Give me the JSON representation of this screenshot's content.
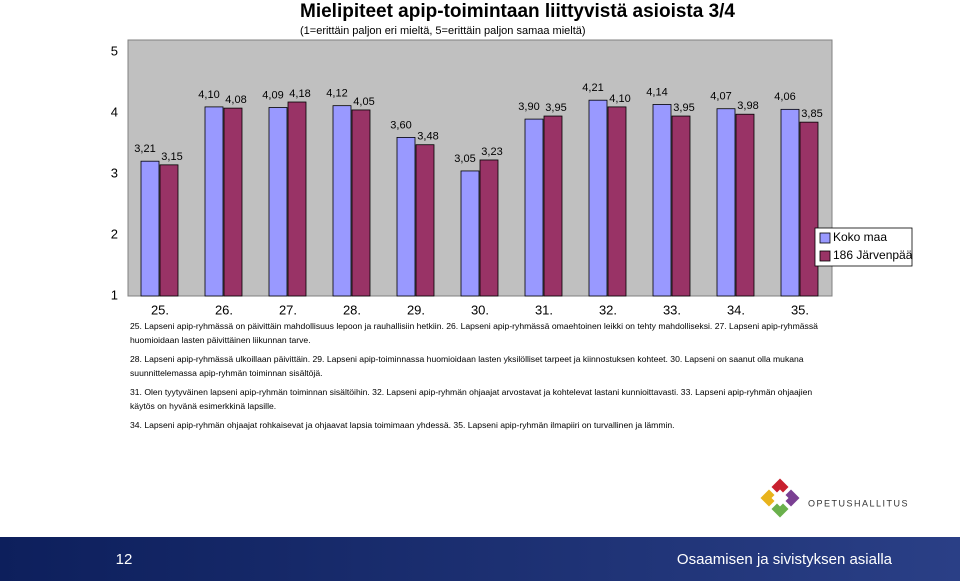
{
  "chart_data": {
    "type": "bar",
    "title": "Mielipiteet apip-toimintaan liittyvistä asioista 3/4",
    "subtitle": "(1=erittäin paljon eri mieltä, 5=erittäin paljon samaa mieltä)",
    "categories": [
      "25.",
      "26.",
      "27.",
      "28.",
      "29.",
      "30.",
      "31.",
      "32.",
      "33.",
      "34.",
      "35."
    ],
    "series": [
      {
        "name": "Koko maa",
        "color": "#9999ff",
        "values": [
          3.21,
          4.1,
          4.09,
          4.12,
          3.6,
          3.05,
          3.9,
          4.21,
          4.14,
          4.07,
          4.06
        ],
        "value_labels": [
          "3,21",
          "4,10",
          "4,09",
          "4,12",
          "3,60",
          "3,05",
          "3,90",
          "4,21",
          "4,14",
          "4,07",
          "4,06"
        ]
      },
      {
        "name": "186 Järvenpää",
        "color": "#993366",
        "values": [
          3.15,
          4.08,
          4.18,
          4.05,
          3.48,
          3.23,
          3.95,
          4.1,
          3.95,
          3.98,
          3.85
        ],
        "value_labels": [
          "3,15",
          "4,08",
          "4,18",
          "4,05",
          "3,48",
          "3,23",
          "3,95",
          "4,10",
          "3,95",
          "3,98",
          "3,85"
        ]
      }
    ],
    "ylim": [
      1,
      5
    ],
    "yticks": [
      1,
      2,
      3,
      4,
      5
    ],
    "grid": false,
    "legend": "right"
  },
  "notes": [
    "25. Lapseni apip-ryhmässä on päivittäin mahdollisuus lepoon ja rauhallisiin hetkiin. 26. Lapseni apip-ryhmässä omaehtoinen leikki on tehty mahdolliseksi. 27. Lapseni apip-ryhmässä huomioidaan lasten päivittäinen liikunnan tarve.",
    "28. Lapseni apip-ryhmässä ulkoillaan päivittäin. 29. Lapseni apip-toiminnassa huomioidaan lasten yksilölliset tarpeet ja kiinnostuksen kohteet. 30. Lapseni on saanut olla mukana suunnittelemassa apip-ryhmän toiminnan sisältöjä.",
    "31. Olen tyytyväinen lapseni apip-ryhmän toiminnan sisältöihin. 32. Lapseni apip-ryhmän ohjaajat arvostavat ja kohtelevat lastani kunnioittavasti. 33. Lapseni apip-ryhmän ohjaajien käytös on hyvänä esimerkkinä lapsille.",
    "34. Lapseni apip-ryhmän ohjaajat rohkaisevat ja ohjaavat lapsia toimimaan yhdessä. 35. Lapseni apip-ryhmän ilmapiiri on turvallinen ja lämmin."
  ],
  "logo": "OPETUSHALLITUS",
  "footer": {
    "page": "12",
    "text": "Osaamisen ja sivistyksen asialla"
  }
}
